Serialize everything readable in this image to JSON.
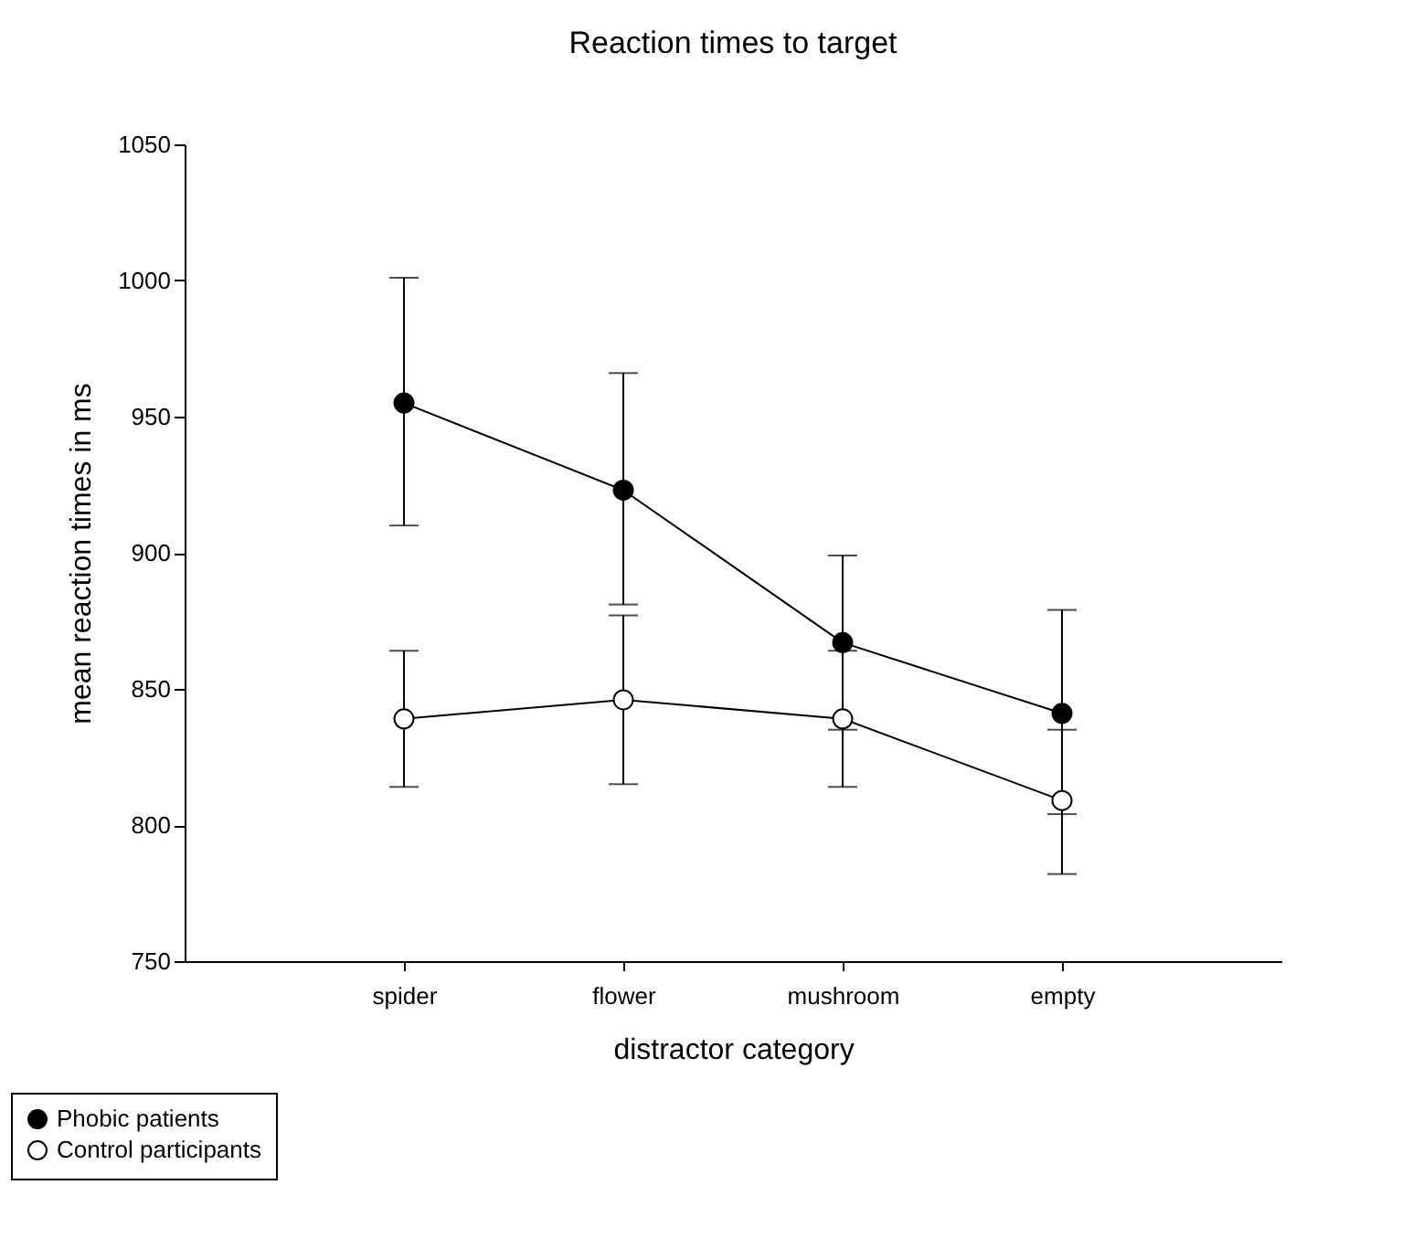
{
  "chart_data": {
    "type": "line",
    "title": "Reaction times to target",
    "xlabel": "distractor category",
    "ylabel": "mean reaction times in ms",
    "categories": [
      "spider",
      "flower",
      "mushroom",
      "empty"
    ],
    "series": [
      {
        "name": "Phobic patients",
        "color": "#000000",
        "values": [
          955,
          923,
          867,
          841
        ],
        "errors": [
          [
            910,
            1001
          ],
          [
            881,
            966
          ],
          [
            835,
            899
          ],
          [
            804,
            879
          ]
        ]
      },
      {
        "name": "Control participants",
        "color": "#ffffff",
        "values": [
          839,
          846,
          839,
          809
        ],
        "errors": [
          [
            814,
            864
          ],
          [
            815,
            877
          ],
          [
            814,
            864
          ],
          [
            782,
            835
          ]
        ]
      }
    ],
    "ylim": [
      750,
      1050
    ],
    "yticks": [
      750,
      800,
      850,
      900,
      950,
      1000,
      1050
    ],
    "grid": false,
    "legend": "bottom left",
    "marker": "circle",
    "line_style": "solid"
  }
}
